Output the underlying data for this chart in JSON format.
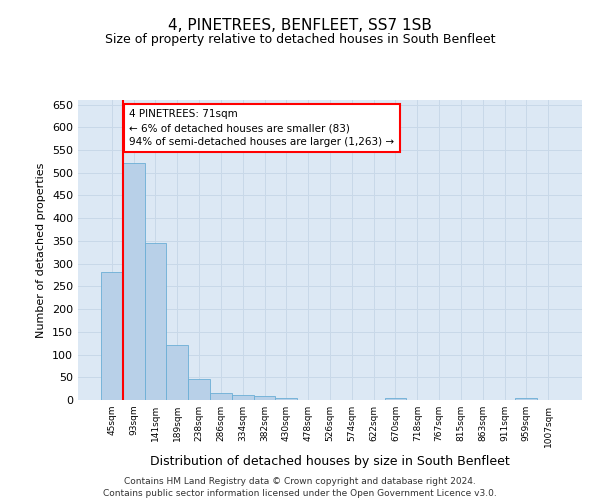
{
  "title": "4, PINETREES, BENFLEET, SS7 1SB",
  "subtitle": "Size of property relative to detached houses in South Benfleet",
  "xlabel": "Distribution of detached houses by size in South Benfleet",
  "ylabel": "Number of detached properties",
  "footer_line1": "Contains HM Land Registry data © Crown copyright and database right 2024.",
  "footer_line2": "Contains public sector information licensed under the Open Government Licence v3.0.",
  "categories": [
    "45sqm",
    "93sqm",
    "141sqm",
    "189sqm",
    "238sqm",
    "286sqm",
    "334sqm",
    "382sqm",
    "430sqm",
    "478sqm",
    "526sqm",
    "574sqm",
    "622sqm",
    "670sqm",
    "718sqm",
    "767sqm",
    "815sqm",
    "863sqm",
    "911sqm",
    "959sqm",
    "1007sqm"
  ],
  "values": [
    281,
    522,
    346,
    121,
    47,
    16,
    10,
    8,
    5,
    0,
    0,
    0,
    0,
    5,
    0,
    0,
    0,
    0,
    0,
    5,
    0
  ],
  "bar_color": "#b8d0e8",
  "bar_edge_color": "#6baed6",
  "grid_color": "#c8d8e8",
  "background_color": "#dce8f4",
  "ylim": [
    0,
    660
  ],
  "yticks": [
    0,
    50,
    100,
    150,
    200,
    250,
    300,
    350,
    400,
    450,
    500,
    550,
    600,
    650
  ],
  "annotation_text": "4 PINETREES: 71sqm\n← 6% of detached houses are smaller (83)\n94% of semi-detached houses are larger (1,263) →",
  "annotation_box_color": "white",
  "annotation_box_edge": "red",
  "red_line_x": 0.5,
  "title_fontsize": 11,
  "subtitle_fontsize": 9,
  "title_fontweight": "normal"
}
